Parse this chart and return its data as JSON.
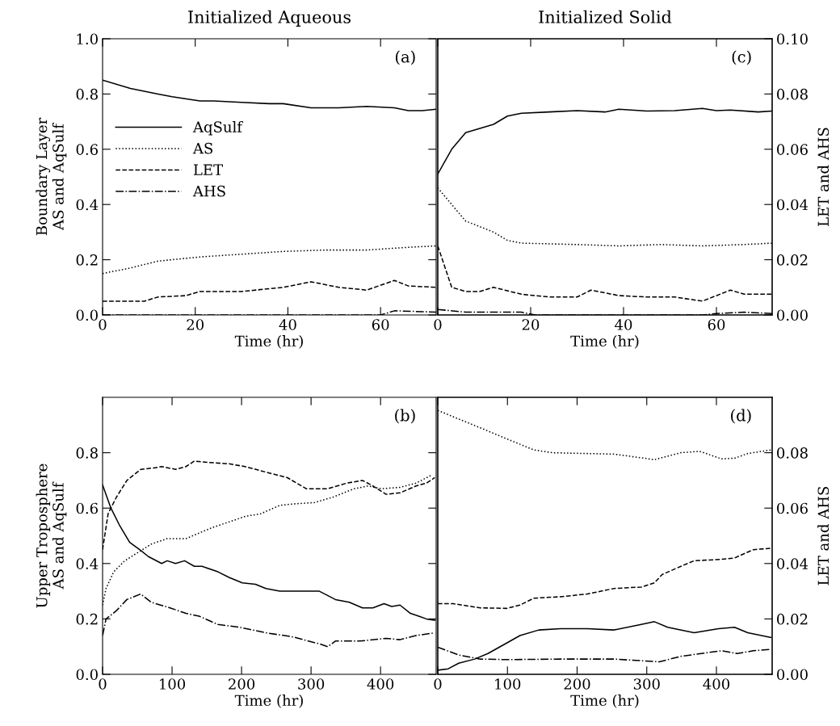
{
  "chart_data": [
    {
      "type": "line",
      "title": "Initialized Aqueous",
      "ylabel": "Boundary Layer\nAS and AqSulf",
      "xlabel": "Time (hr)",
      "annotations": [
        "(a)"
      ],
      "xlim": [
        0,
        72
      ],
      "xticks": [
        0,
        20,
        40,
        60
      ],
      "ylim": [
        0,
        1.0
      ],
      "yticks": [
        {
          "value": 0,
          "label": "0.0"
        },
        {
          "value": 0.2,
          "label": "0.2"
        },
        {
          "value": 0.4,
          "label": "0.4"
        },
        {
          "value": 0.6,
          "label": "0.6"
        },
        {
          "value": 0.8,
          "label": "0.8"
        },
        {
          "value": 1.0,
          "label": "1.0"
        }
      ],
      "legend": "center left",
      "grid": false,
      "series": [
        {
          "name": "AqSulf",
          "color": "#000000",
          "line_style": "solid",
          "x": [
            0,
            6,
            12,
            15,
            21,
            24,
            30,
            36,
            39,
            45,
            51,
            57,
            63,
            66,
            69,
            72
          ],
          "values": [
            0.85,
            0.82,
            0.8,
            0.79,
            0.775,
            0.775,
            0.77,
            0.765,
            0.765,
            0.75,
            0.75,
            0.755,
            0.75,
            0.74,
            0.74,
            0.745
          ]
        },
        {
          "name": "AS",
          "color": "#000000",
          "line_style": "dotted",
          "x": [
            0,
            6,
            12,
            21,
            30,
            39,
            48,
            57,
            66,
            72
          ],
          "values": [
            0.15,
            0.17,
            0.195,
            0.21,
            0.22,
            0.23,
            0.235,
            0.235,
            0.245,
            0.25
          ]
        },
        {
          "name": "LET",
          "color": "#000000",
          "line_style": "dashed",
          "x": [
            0,
            9,
            12,
            18,
            21,
            30,
            39,
            45,
            51,
            57,
            63,
            66,
            72
          ],
          "values": [
            0.05,
            0.05,
            0.065,
            0.07,
            0.085,
            0.085,
            0.1,
            0.12,
            0.1,
            0.09,
            0.125,
            0.105,
            0.1
          ]
        },
        {
          "name": "AHS",
          "color": "#000000",
          "line_style": "dashdot",
          "x": [
            0,
            30,
            60,
            63,
            69,
            72
          ],
          "values": [
            0.0,
            0.0,
            0.0,
            0.015,
            0.012,
            0.01
          ]
        }
      ]
    },
    {
      "type": "line",
      "xlabel": "Time (hr)",
      "ylabel": "Upper Troposphere\nAS and AqSulf",
      "annotations": [
        "(b)"
      ],
      "xlim": [
        0,
        480
      ],
      "xticks": [
        0,
        100,
        200,
        300,
        400
      ],
      "ylim": [
        0,
        1.0
      ],
      "yticks": [
        {
          "value": 0,
          "label": "0.0"
        },
        {
          "value": 0.2,
          "label": "0.2"
        },
        {
          "value": 0.4,
          "label": "0.4"
        },
        {
          "value": 0.6,
          "label": "0.6"
        },
        {
          "value": 0.8,
          "label": "0.8"
        }
      ],
      "grid": false,
      "series": [
        {
          "color": "#000000",
          "line_style": "solid",
          "x": [
            0,
            12,
            24,
            39,
            55,
            66,
            85,
            93,
            105,
            118,
            132,
            143,
            166,
            182,
            201,
            220,
            235,
            255,
            278,
            293,
            312,
            335,
            355,
            374,
            389,
            405,
            416,
            428,
            443,
            455,
            466,
            478
          ],
          "values": [
            0.684,
            0.6,
            0.54,
            0.476,
            0.447,
            0.425,
            0.4,
            0.41,
            0.4,
            0.41,
            0.39,
            0.39,
            0.37,
            0.35,
            0.33,
            0.325,
            0.31,
            0.3,
            0.3,
            0.3,
            0.3,
            0.27,
            0.26,
            0.24,
            0.24,
            0.255,
            0.245,
            0.25,
            0.22,
            0.21,
            0.2,
            0.195
          ]
        },
        {
          "color": "#000000",
          "line_style": "dotted",
          "x": [
            0,
            5,
            16,
            32,
            51,
            70,
            93,
            120,
            139,
            158,
            182,
            205,
            228,
            255,
            274,
            305,
            332,
            362,
            382,
            401,
            428,
            451,
            474
          ],
          "values": [
            0.25,
            0.31,
            0.37,
            0.41,
            0.44,
            0.47,
            0.49,
            0.49,
            0.51,
            0.53,
            0.55,
            0.57,
            0.58,
            0.61,
            0.615,
            0.62,
            0.64,
            0.67,
            0.68,
            0.67,
            0.675,
            0.69,
            0.72
          ]
        },
        {
          "color": "#000000",
          "line_style": "dashed",
          "x": [
            0,
            8,
            20,
            35,
            55,
            74,
            85,
            105,
            120,
            132,
            151,
            182,
            205,
            235,
            266,
            293,
            324,
            351,
            374,
            389,
            408,
            428,
            451,
            466,
            478
          ],
          "values": [
            0.45,
            0.58,
            0.64,
            0.7,
            0.74,
            0.745,
            0.75,
            0.74,
            0.75,
            0.77,
            0.765,
            0.76,
            0.75,
            0.73,
            0.71,
            0.67,
            0.67,
            0.69,
            0.7,
            0.68,
            0.65,
            0.655,
            0.68,
            0.69,
            0.71
          ]
        },
        {
          "color": "#000000",
          "line_style": "dashdot",
          "x": [
            0,
            5,
            20,
            35,
            55,
            70,
            97,
            120,
            139,
            166,
            197,
            235,
            274,
            312,
            324,
            335,
            370,
            408,
            428,
            451,
            478
          ],
          "values": [
            0.14,
            0.2,
            0.23,
            0.27,
            0.29,
            0.26,
            0.24,
            0.22,
            0.21,
            0.18,
            0.17,
            0.15,
            0.135,
            0.11,
            0.1,
            0.12,
            0.12,
            0.13,
            0.125,
            0.14,
            0.15
          ]
        }
      ]
    },
    {
      "type": "line",
      "title": "Initialized Solid",
      "xlabel": "Time (hr)",
      "y2label": "LET and AHS",
      "annotations": [
        "(c)"
      ],
      "xlim": [
        0,
        72
      ],
      "xticks": [
        0,
        20,
        40,
        60
      ],
      "y2lim": [
        0,
        0.1
      ],
      "y2ticks": [
        {
          "value": 0,
          "label": "0.00"
        },
        {
          "value": 0.02,
          "label": "0.02"
        },
        {
          "value": 0.04,
          "label": "0.04"
        },
        {
          "value": 0.06,
          "label": "0.06"
        },
        {
          "value": 0.08,
          "label": "0.08"
        },
        {
          "value": 0.1,
          "label": "0.10"
        }
      ],
      "grid": false,
      "series": [
        {
          "color": "#000000",
          "line_style": "solid",
          "axis": "y2",
          "x": [
            0,
            3,
            6,
            12,
            15,
            18,
            24,
            30,
            36,
            39,
            45,
            51,
            57,
            60,
            63,
            69,
            72
          ],
          "values": [
            0.051,
            0.06,
            0.066,
            0.069,
            0.072,
            0.073,
            0.0735,
            0.074,
            0.0735,
            0.0745,
            0.0738,
            0.074,
            0.0748,
            0.074,
            0.0742,
            0.0735,
            0.0738
          ]
        },
        {
          "color": "#000000",
          "line_style": "dotted",
          "axis": "y2",
          "x": [
            0,
            3,
            6,
            12,
            15,
            18,
            30,
            39,
            48,
            57,
            66,
            72
          ],
          "values": [
            0.046,
            0.04,
            0.034,
            0.03,
            0.027,
            0.026,
            0.0255,
            0.025,
            0.0255,
            0.025,
            0.0255,
            0.026
          ]
        },
        {
          "color": "#000000",
          "line_style": "dashed",
          "axis": "y2",
          "x": [
            0,
            2,
            3,
            6,
            9,
            12,
            18,
            24,
            30,
            33,
            39,
            45,
            51,
            57,
            63,
            66,
            72
          ],
          "values": [
            0.025,
            0.015,
            0.01,
            0.0085,
            0.0085,
            0.01,
            0.0075,
            0.0065,
            0.0065,
            0.009,
            0.007,
            0.0065,
            0.0065,
            0.005,
            0.009,
            0.0075,
            0.0075
          ]
        },
        {
          "color": "#000000",
          "line_style": "dashdot",
          "axis": "y2",
          "x": [
            0,
            6,
            18,
            21,
            57,
            60,
            66,
            72
          ],
          "values": [
            0.002,
            0.001,
            0.001,
            0.0,
            0.0,
            0.0005,
            0.001,
            0.0005
          ]
        }
      ]
    },
    {
      "type": "line",
      "xlabel": "Time (hr)",
      "y2label": "LET and AHS",
      "annotations": [
        "(d)"
      ],
      "xlim": [
        0,
        480
      ],
      "xticks": [
        0,
        100,
        200,
        300,
        400
      ],
      "y2lim": [
        0,
        0.1
      ],
      "y2ticks": [
        {
          "value": 0,
          "label": "0.00"
        },
        {
          "value": 0.02,
          "label": "0.02"
        },
        {
          "value": 0.04,
          "label": "0.04"
        },
        {
          "value": 0.06,
          "label": "0.06"
        },
        {
          "value": 0.08,
          "label": "0.08"
        }
      ],
      "grid": false,
      "series": [
        {
          "color": "#000000",
          "line_style": "solid",
          "axis": "y2",
          "x": [
            0,
            15,
            30,
            53,
            72,
            99,
            118,
            145,
            176,
            215,
            253,
            292,
            311,
            330,
            368,
            403,
            426,
            445,
            478
          ],
          "values": [
            0.0015,
            0.002,
            0.004,
            0.0055,
            0.0075,
            0.0113,
            0.014,
            0.016,
            0.0165,
            0.0165,
            0.016,
            0.018,
            0.019,
            0.017,
            0.015,
            0.0165,
            0.017,
            0.015,
            0.0133
          ]
        },
        {
          "color": "#000000",
          "line_style": "dotted",
          "axis": "y2",
          "x": [
            0,
            22,
            61,
            99,
            138,
            165,
            215,
            253,
            311,
            349,
            376,
            407,
            426,
            445,
            478
          ],
          "values": [
            0.0953,
            0.093,
            0.089,
            0.085,
            0.081,
            0.08,
            0.0797,
            0.0795,
            0.0775,
            0.08,
            0.0805,
            0.0778,
            0.078,
            0.0797,
            0.081
          ]
        },
        {
          "color": "#000000",
          "line_style": "dashed",
          "axis": "y2",
          "x": [
            0,
            22,
            61,
            99,
            118,
            138,
            176,
            215,
            253,
            292,
            311,
            322,
            349,
            368,
            407,
            426,
            453,
            478
          ],
          "values": [
            0.0255,
            0.0255,
            0.024,
            0.0238,
            0.025,
            0.0275,
            0.028,
            0.029,
            0.031,
            0.0315,
            0.033,
            0.036,
            0.039,
            0.041,
            0.0415,
            0.042,
            0.045,
            0.0455
          ]
        },
        {
          "color": "#000000",
          "line_style": "dashdot",
          "axis": "y2",
          "x": [
            0,
            30,
            61,
            99,
            176,
            253,
            318,
            349,
            407,
            430,
            453,
            478
          ],
          "values": [
            0.0098,
            0.007,
            0.0055,
            0.0053,
            0.0055,
            0.0055,
            0.0045,
            0.0065,
            0.0085,
            0.0075,
            0.0085,
            0.009
          ]
        }
      ]
    }
  ]
}
